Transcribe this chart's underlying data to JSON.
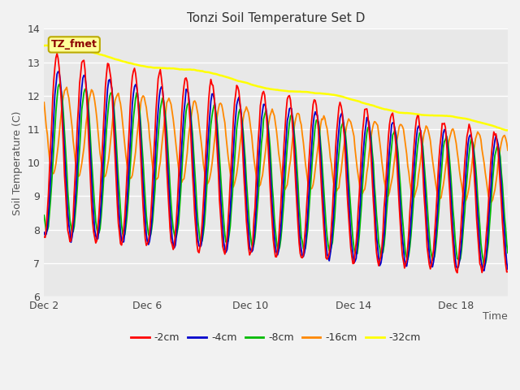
{
  "title": "Tonzi Soil Temperature Set D",
  "xlabel": "Time",
  "ylabel": "Soil Temperature (C)",
  "ylim": [
    6.0,
    14.0
  ],
  "yticks": [
    6.0,
    7.0,
    8.0,
    9.0,
    10.0,
    11.0,
    12.0,
    13.0,
    14.0
  ],
  "xtick_labels": [
    "Dec 2",
    "Dec 6",
    "Dec 10",
    "Dec 14",
    "Dec 18"
  ],
  "xtick_positions": [
    0,
    4,
    8,
    12,
    16
  ],
  "line_colors": [
    "#ff0000",
    "#0000cc",
    "#00bb00",
    "#ff8800",
    "#ffff00"
  ],
  "line_labels": [
    "-2cm",
    "-4cm",
    "-8cm",
    "-16cm",
    "-32cm"
  ],
  "legend_label": "TZ_fmet",
  "legend_bg": "#ffff99",
  "legend_border": "#bbaa00",
  "fig_bg": "#f2f2f2",
  "plot_bg": "#e8e8e8",
  "figsize": [
    6.4,
    4.8
  ],
  "dpi": 100
}
